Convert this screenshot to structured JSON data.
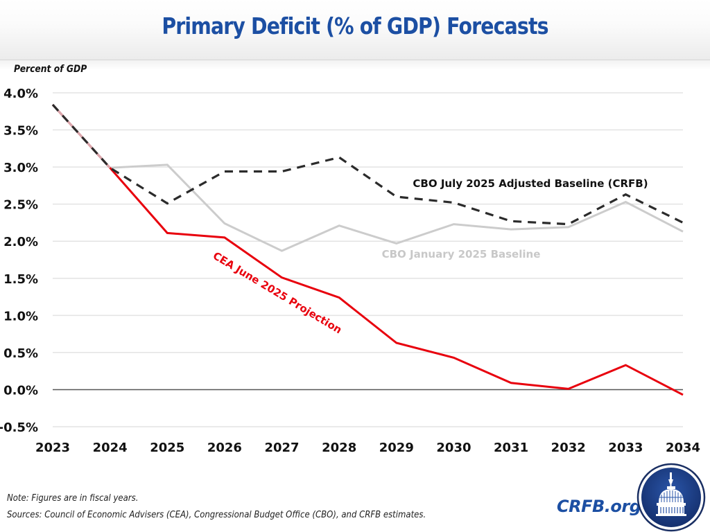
{
  "header": {
    "title": "Primary Deficit (% of GDP) Forecasts"
  },
  "chart_data": {
    "type": "line",
    "title": "Primary Deficit (% of GDP) Forecasts",
    "ylabel": "Percent of GDP",
    "xlabel": "",
    "x": [
      "2023",
      "2024",
      "2025",
      "2026",
      "2027",
      "2028",
      "2029",
      "2030",
      "2031",
      "2032",
      "2033",
      "2034"
    ],
    "ylim": [
      -0.5,
      4.0
    ],
    "yticks": [
      4.0,
      3.5,
      3.0,
      2.5,
      2.0,
      1.5,
      1.0,
      0.5,
      0.0,
      -0.5
    ],
    "ytick_labels": [
      "4.0%",
      "3.5%",
      "3.0%",
      "2.5%",
      "2.0%",
      "1.5%",
      "1.0%",
      "0.5%",
      "0.0%",
      "-0.5%"
    ],
    "grid": true,
    "legend": "inline labels",
    "series": [
      {
        "name": "CBO January 2025 Baseline",
        "color": "#cccccc",
        "style": "solid",
        "values": [
          3.84,
          2.99,
          3.03,
          2.24,
          1.87,
          2.21,
          1.97,
          2.23,
          2.16,
          2.19,
          2.53,
          2.13
        ]
      },
      {
        "name": "CEA June 2025 Projection",
        "color": "#e8000d",
        "style": "solid",
        "values": [
          3.84,
          2.99,
          2.11,
          2.05,
          1.51,
          1.24,
          0.63,
          0.43,
          0.09,
          0.01,
          0.33,
          -0.07
        ]
      },
      {
        "name": "CBO July 2025 Adjusted Baseline (CRFB)",
        "color": "#2b2b2b",
        "style": "dashed",
        "values": [
          3.84,
          2.99,
          2.51,
          2.94,
          2.94,
          3.13,
          2.6,
          2.52,
          2.27,
          2.23,
          2.63,
          2.25
        ]
      }
    ],
    "annotations": [
      {
        "text": "CBO July 2025 Adjusted Baseline (CRFB)",
        "series": 2
      },
      {
        "text": "CBO January 2025 Baseline",
        "series": 0
      },
      {
        "text": "CEA June 2025 Projection",
        "series": 1
      }
    ]
  },
  "footer": {
    "note": "Note: Figures are in fiscal years.",
    "sources": "Sources: Council of Economic Advisers (CEA), Congressional Budget Office (CBO), and CRFB estimates.",
    "brand": "CRFB.org",
    "logo_icon": "capitol-dome-icon",
    "brand_color": "#1c4fa3"
  }
}
